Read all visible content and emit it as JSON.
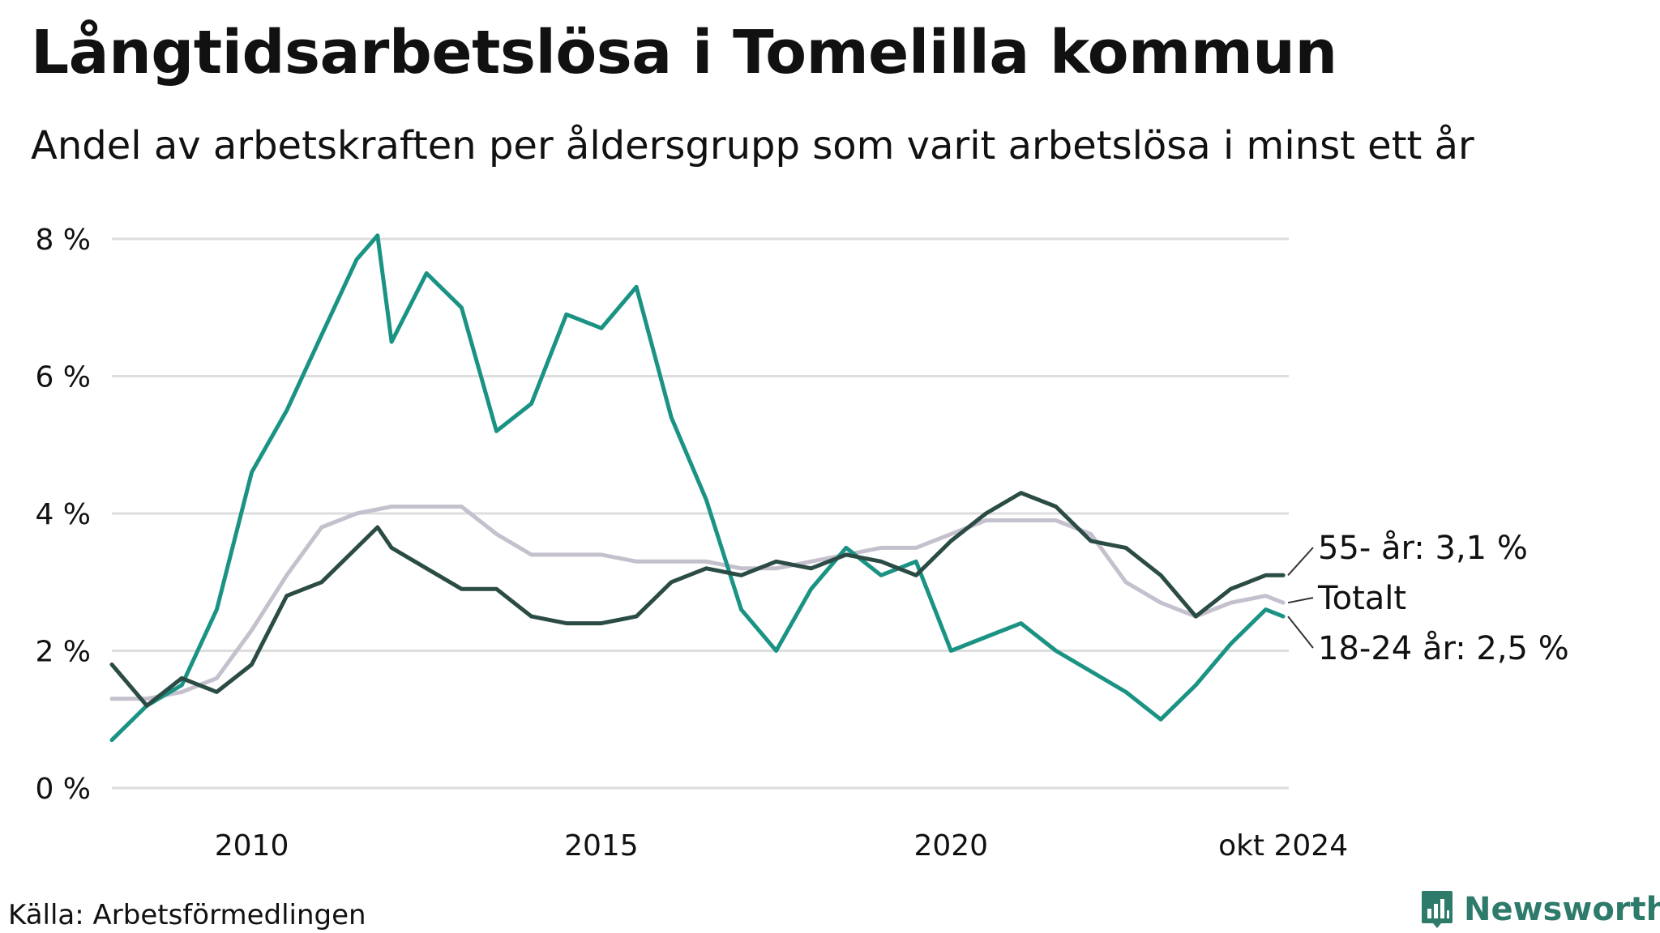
{
  "header": {
    "title": "Långtidsarbetslösa i Tomelilla kommun",
    "subtitle": "Andel av arbetskraften per åldersgrupp som varit arbetslösa i minst ett år"
  },
  "footer": {
    "source": "Källa: Arbetsförmedlingen",
    "brand": "Newsworthy",
    "brand_icon": "newsworthy-logo-icon"
  },
  "colors": {
    "youth": "#1a9384",
    "older": "#2b4b45",
    "total": "#c4c0cd",
    "grid": "#dedede",
    "brand": "#2e7a6b"
  },
  "chart_data": {
    "type": "line",
    "title": "Långtidsarbetslösa i Tomelilla kommun",
    "subtitle": "Andel av arbetskraften per åldersgrupp som varit arbetslösa i minst ett år",
    "xlabel": "",
    "ylabel": "",
    "xlim": [
      2008.0,
      2024.83
    ],
    "ylim": [
      0,
      8
    ],
    "grid": true,
    "x_ticks": [
      {
        "value": 2010,
        "label": "2010"
      },
      {
        "value": 2015,
        "label": "2015"
      },
      {
        "value": 2020,
        "label": "2020"
      },
      {
        "value": 2024.75,
        "label": "okt 2024"
      }
    ],
    "y_ticks": [
      {
        "value": 0,
        "label": "0 %"
      },
      {
        "value": 2,
        "label": "2 %"
      },
      {
        "value": 4,
        "label": "4 %"
      },
      {
        "value": 6,
        "label": "6 %"
      },
      {
        "value": 8,
        "label": "8 %"
      }
    ],
    "series": [
      {
        "name": "Totalt",
        "end_label": "Totalt",
        "key": "total",
        "color": "#c4c0cd",
        "points": [
          [
            2008.0,
            1.3
          ],
          [
            2008.5,
            1.3
          ],
          [
            2009.0,
            1.4
          ],
          [
            2009.5,
            1.6
          ],
          [
            2010.0,
            2.3
          ],
          [
            2010.5,
            3.1
          ],
          [
            2011.0,
            3.8
          ],
          [
            2011.5,
            4.0
          ],
          [
            2012.0,
            4.1
          ],
          [
            2012.5,
            4.1
          ],
          [
            2013.0,
            4.1
          ],
          [
            2013.5,
            3.7
          ],
          [
            2014.0,
            3.4
          ],
          [
            2014.5,
            3.4
          ],
          [
            2015.0,
            3.4
          ],
          [
            2015.5,
            3.3
          ],
          [
            2016.0,
            3.3
          ],
          [
            2016.5,
            3.3
          ],
          [
            2017.0,
            3.2
          ],
          [
            2017.5,
            3.2
          ],
          [
            2018.0,
            3.3
          ],
          [
            2018.5,
            3.4
          ],
          [
            2019.0,
            3.5
          ],
          [
            2019.5,
            3.5
          ],
          [
            2020.0,
            3.7
          ],
          [
            2020.5,
            3.9
          ],
          [
            2021.0,
            3.9
          ],
          [
            2021.5,
            3.9
          ],
          [
            2022.0,
            3.7
          ],
          [
            2022.5,
            3.0
          ],
          [
            2023.0,
            2.7
          ],
          [
            2023.5,
            2.5
          ],
          [
            2024.0,
            2.7
          ],
          [
            2024.5,
            2.8
          ],
          [
            2024.75,
            2.7
          ]
        ]
      },
      {
        "name": "18-24 år",
        "end_label": "18-24 år: 2,5 %",
        "key": "youth",
        "color": "#1a9384",
        "points": [
          [
            2008.0,
            0.7
          ],
          [
            2008.5,
            1.2
          ],
          [
            2009.0,
            1.5
          ],
          [
            2009.5,
            2.6
          ],
          [
            2010.0,
            4.6
          ],
          [
            2010.5,
            5.5
          ],
          [
            2011.0,
            6.6
          ],
          [
            2011.5,
            7.7
          ],
          [
            2011.8,
            8.05
          ],
          [
            2012.0,
            6.5
          ],
          [
            2012.5,
            7.5
          ],
          [
            2013.0,
            7.0
          ],
          [
            2013.5,
            5.2
          ],
          [
            2014.0,
            5.6
          ],
          [
            2014.5,
            6.9
          ],
          [
            2015.0,
            6.7
          ],
          [
            2015.5,
            7.3
          ],
          [
            2016.0,
            5.4
          ],
          [
            2016.5,
            4.2
          ],
          [
            2017.0,
            2.6
          ],
          [
            2017.5,
            2.0
          ],
          [
            2018.0,
            2.9
          ],
          [
            2018.5,
            3.5
          ],
          [
            2019.0,
            3.1
          ],
          [
            2019.5,
            3.3
          ],
          [
            2020.0,
            2.0
          ],
          [
            2020.5,
            2.2
          ],
          [
            2021.0,
            2.4
          ],
          [
            2021.5,
            2.0
          ],
          [
            2022.0,
            1.7
          ],
          [
            2022.5,
            1.4
          ],
          [
            2023.0,
            1.0
          ],
          [
            2023.5,
            1.5
          ],
          [
            2024.0,
            2.1
          ],
          [
            2024.5,
            2.6
          ],
          [
            2024.75,
            2.5
          ]
        ]
      },
      {
        "name": "55- år",
        "end_label": "55- år: 3,1 %",
        "key": "older",
        "color": "#2b4b45",
        "points": [
          [
            2008.0,
            1.8
          ],
          [
            2008.5,
            1.2
          ],
          [
            2009.0,
            1.6
          ],
          [
            2009.5,
            1.4
          ],
          [
            2010.0,
            1.8
          ],
          [
            2010.5,
            2.8
          ],
          [
            2011.0,
            3.0
          ],
          [
            2011.5,
            3.5
          ],
          [
            2011.8,
            3.8
          ],
          [
            2012.0,
            3.5
          ],
          [
            2012.5,
            3.2
          ],
          [
            2013.0,
            2.9
          ],
          [
            2013.5,
            2.9
          ],
          [
            2014.0,
            2.5
          ],
          [
            2014.5,
            2.4
          ],
          [
            2015.0,
            2.4
          ],
          [
            2015.5,
            2.5
          ],
          [
            2016.0,
            3.0
          ],
          [
            2016.5,
            3.2
          ],
          [
            2017.0,
            3.1
          ],
          [
            2017.5,
            3.3
          ],
          [
            2018.0,
            3.2
          ],
          [
            2018.5,
            3.4
          ],
          [
            2019.0,
            3.3
          ],
          [
            2019.5,
            3.1
          ],
          [
            2020.0,
            3.6
          ],
          [
            2020.5,
            4.0
          ],
          [
            2021.0,
            4.3
          ],
          [
            2021.5,
            4.1
          ],
          [
            2022.0,
            3.6
          ],
          [
            2022.5,
            3.5
          ],
          [
            2023.0,
            3.1
          ],
          [
            2023.5,
            2.5
          ],
          [
            2024.0,
            2.9
          ],
          [
            2024.5,
            3.1
          ],
          [
            2024.75,
            3.1
          ]
        ]
      }
    ]
  }
}
